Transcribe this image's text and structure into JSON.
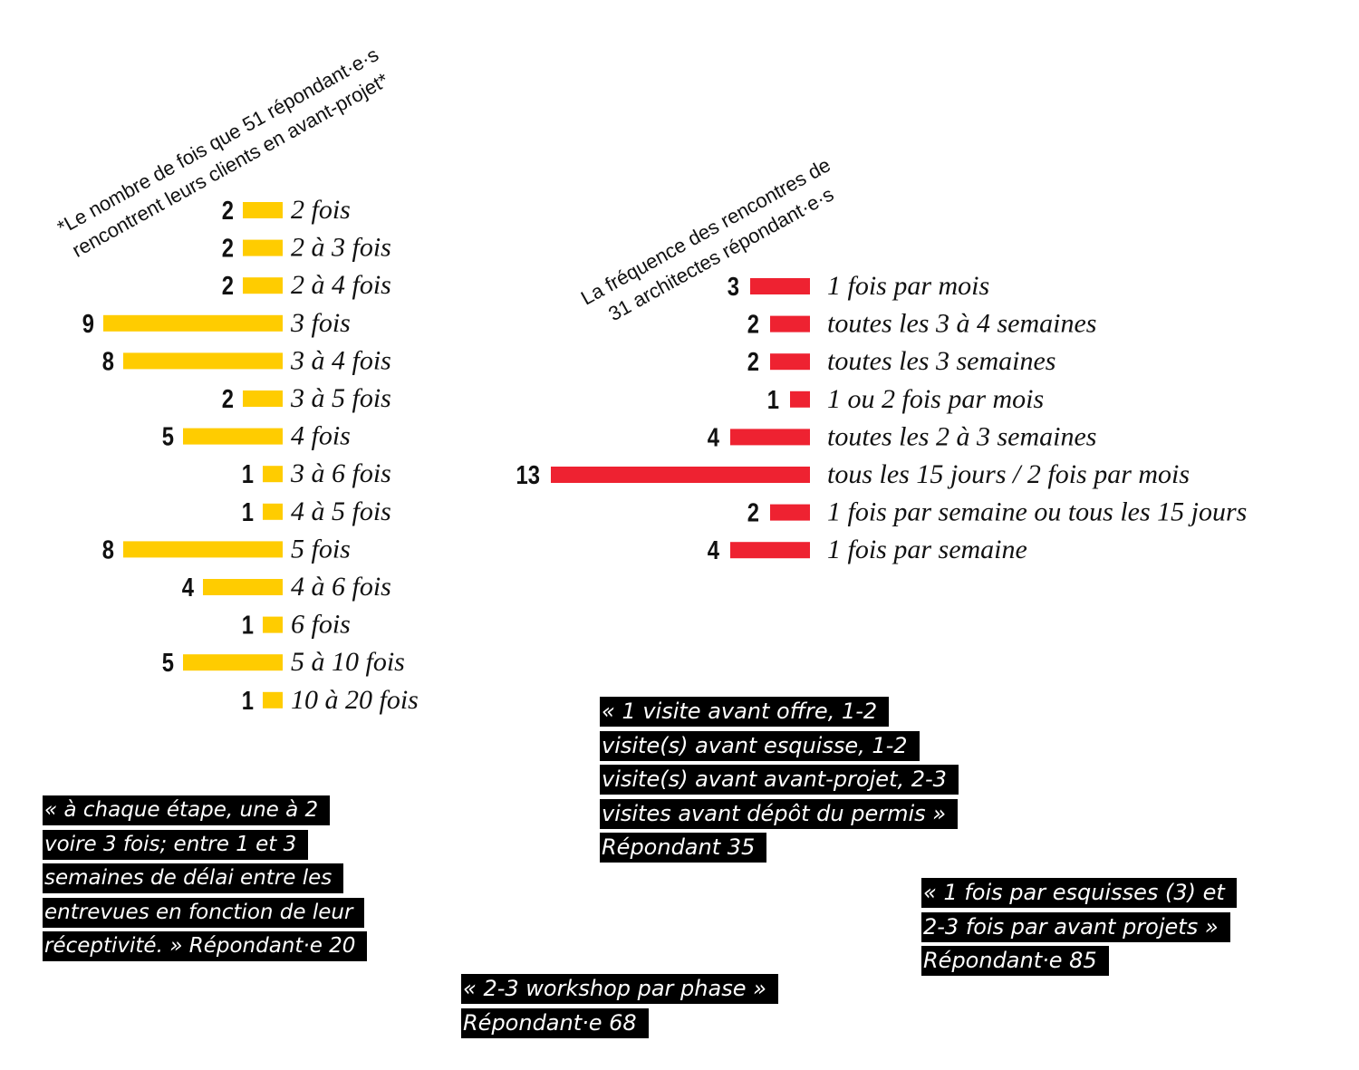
{
  "chart_data": [
    {
      "type": "bar",
      "orientation": "horizontal",
      "title_lines": [
        "*Le nombre de fois que 51 répondant·e·s",
        "rencontrent leurs clients en avant-projet*"
      ],
      "bar_color": "#FFCC00",
      "categories": [
        "2 fois",
        "2 à 3 fois",
        "2 à 4 fois",
        "3 fois",
        "3 à 4 fois",
        "3 à 5 fois",
        "4 fois",
        "3 à 6 fois",
        "4 à 5 fois",
        "5 fois",
        "4 à 6 fois",
        "6 fois",
        "5 à 10 fois",
        "10 à 20 fois"
      ],
      "values": [
        2,
        2,
        2,
        9,
        8,
        2,
        5,
        1,
        1,
        8,
        4,
        1,
        5,
        1
      ]
    },
    {
      "type": "bar",
      "orientation": "horizontal",
      "title_lines": [
        "La fréquence des rencontres de",
        "31 architectes répondant·e·s"
      ],
      "bar_color": "#EE2231",
      "categories": [
        "1 fois par mois",
        "toutes les 3 à 4 semaines",
        "toutes les 3 semaines",
        "1 ou 2 fois par mois",
        "toutes les 2 à 3 semaines",
        "tous les 15 jours / 2 fois par mois",
        "1 fois par semaine ou tous les 15 jours",
        "1 fois par semaine"
      ],
      "values": [
        3,
        2,
        2,
        1,
        4,
        13,
        2,
        4
      ]
    }
  ],
  "quotes": [
    {
      "lines": [
        "« à chaque étape, une à 2",
        "voire 3 fois; entre 1 et 3",
        "semaines de délai entre les",
        "entrevues en fonction de leur",
        "réceptivité. » Répondant·e 20"
      ]
    },
    {
      "lines": [
        "« 1 visite avant offre, 1-2",
        "visite(s) avant esquisse, 1-2",
        "visite(s) avant avant-projet, 2-3",
        "visites avant dépôt du permis »",
        "Répondant 35"
      ]
    },
    {
      "lines": [
        "« 1 fois par esquisses (3) et",
        "2-3 fois par avant projets »",
        "Répondant·e 85"
      ]
    },
    {
      "lines": [
        "« 2-3 workshop par phase »",
        "Répondant·e 68"
      ]
    }
  ]
}
